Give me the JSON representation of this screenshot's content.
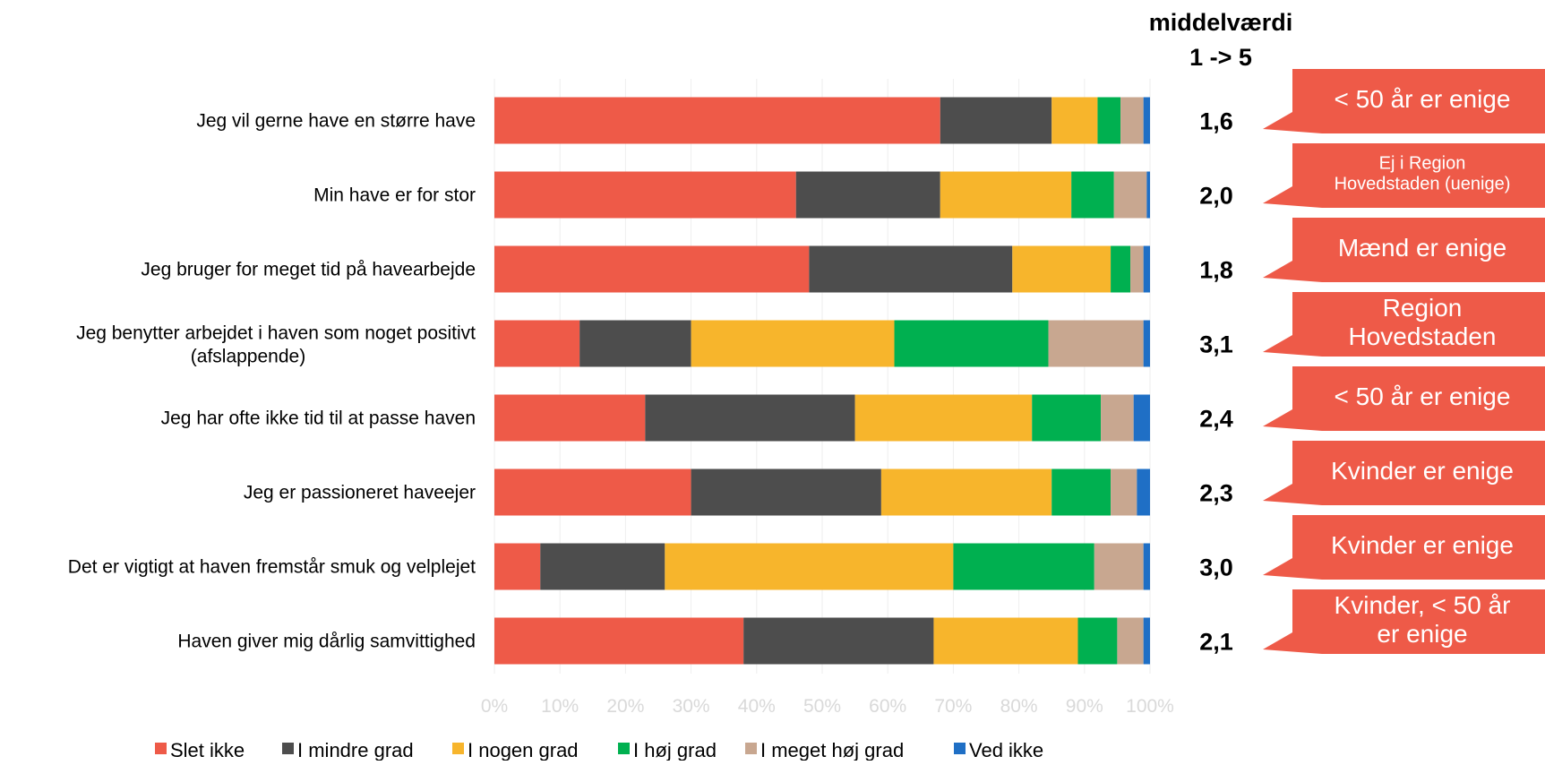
{
  "chart_data": {
    "type": "bar",
    "orientation": "horizontal",
    "stacked": true,
    "percent_stacked": true,
    "xlim": [
      0,
      100
    ],
    "x_ticks": [
      "0%",
      "10%",
      "20%",
      "30%",
      "40%",
      "50%",
      "60%",
      "70%",
      "80%",
      "90%",
      "100%"
    ],
    "grid": true,
    "legend_position": "bottom",
    "categories": [
      "Jeg vil gerne have en større have",
      "Min have er for stor",
      "Jeg bruger for meget tid på havearbejde",
      "Jeg benytter arbejdet i haven som noget positivt (afslappende)",
      "Jeg har ofte ikke tid til at passe haven",
      "Jeg er passioneret haveejer",
      "Det er vigtigt at haven fremstår smuk og velplejet",
      "Haven giver mig dårlig samvittighed"
    ],
    "category_lines": [
      [
        "Jeg vil gerne have en større have"
      ],
      [
        "Min have er for stor"
      ],
      [
        "Jeg bruger for meget tid på havearbejde"
      ],
      [
        "Jeg benytter arbejdet i haven som noget positivt",
        "(afslappende)"
      ],
      [
        "Jeg har ofte ikke tid til at passe haven"
      ],
      [
        "Jeg er passioneret haveejer"
      ],
      [
        "Det er vigtigt at haven fremstår smuk og velplejet"
      ],
      [
        "Haven giver mig dårlig samvittighed"
      ]
    ],
    "series": [
      {
        "name": "Slet ikke",
        "color": "#ee5a48",
        "values": [
          68,
          46,
          48,
          13,
          23,
          30,
          7,
          38
        ]
      },
      {
        "name": "I mindre grad",
        "color": "#4d4d4d",
        "values": [
          17,
          22,
          31,
          17,
          32,
          29,
          19,
          29
        ]
      },
      {
        "name": "I nogen grad",
        "color": "#f7b52c",
        "values": [
          7,
          20,
          15,
          31,
          27,
          26,
          44,
          22
        ]
      },
      {
        "name": "I høj grad",
        "color": "#00b050",
        "values": [
          3.5,
          6.5,
          3,
          23.5,
          10.5,
          9,
          21.5,
          6
        ]
      },
      {
        "name": "I meget høj grad",
        "color": "#c8a790",
        "values": [
          3.5,
          5,
          2,
          14.5,
          5,
          4,
          7.5,
          4
        ]
      },
      {
        "name": "Ved ikke",
        "color": "#1f6fc5",
        "values": [
          1,
          0.5,
          1,
          1,
          2.5,
          2,
          1,
          1
        ]
      }
    ],
    "mean_header": [
      "middelværdi",
      "1 -> 5"
    ],
    "mean_values": [
      "1,6",
      "2,0",
      "1,8",
      "3,1",
      "2,4",
      "2,3",
      "3,0",
      "2,1"
    ],
    "callouts": [
      {
        "lines": [
          "< 50 år er enige"
        ],
        "size": 28
      },
      {
        "lines": [
          "Ej i Region",
          "Hovedstaden (uenige)"
        ],
        "size": 20
      },
      {
        "lines": [
          "Mænd er enige"
        ],
        "size": 28
      },
      {
        "lines": [
          "Region",
          "Hovedstaden"
        ],
        "size": 28
      },
      {
        "lines": [
          "< 50 år er enige"
        ],
        "size": 28
      },
      {
        "lines": [
          "Kvinder er enige"
        ],
        "size": 28
      },
      {
        "lines": [
          "Kvinder er enige"
        ],
        "size": 28
      },
      {
        "lines": [
          "Kvinder, < 50 år",
          "er enige"
        ],
        "size": 28
      }
    ],
    "callout_color": "#ee5a48"
  }
}
